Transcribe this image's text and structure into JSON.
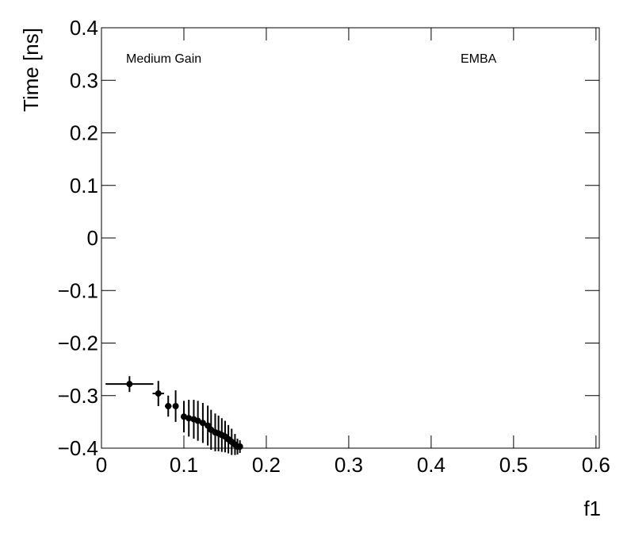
{
  "chart_data": {
    "type": "errorbar",
    "xlabel": "f1",
    "ylabel": "Time [ns]",
    "annotations": [
      "Medium Gain",
      "EMBA"
    ],
    "color": "#000000",
    "xlim": [
      0,
      0.604
    ],
    "ylim": [
      -0.4,
      0.4
    ],
    "xticks": [
      0,
      0.1,
      0.2,
      0.3,
      0.4,
      0.5,
      0.6
    ],
    "yticks": [
      {
        "value": -0.4,
        "label": "−0.4"
      },
      {
        "value": -0.3,
        "label": "−0.3"
      },
      {
        "value": -0.2,
        "label": "−0.2"
      },
      {
        "value": -0.1,
        "label": "−0.1"
      },
      0,
      0.1,
      0.2,
      0.3,
      0.4
    ],
    "x": [
      0.034,
      0.069,
      0.081,
      0.09,
      0.1,
      0.106,
      0.112,
      0.117,
      0.123,
      0.129,
      0.133,
      0.138,
      0.142,
      0.146,
      0.15,
      0.154,
      0.158,
      0.162,
      0.165,
      0.168
    ],
    "xerr": [
      0.029,
      0.007,
      0.004,
      0.003,
      0.003,
      0.003,
      0.003,
      0.003,
      0.003,
      0.002,
      0.002,
      0.002,
      0.002,
      0.002,
      0.002,
      0.002,
      0.002,
      0.002,
      0.001,
      0.001
    ],
    "y": [
      -0.278,
      -0.296,
      -0.32,
      -0.32,
      -0.34,
      -0.343,
      -0.345,
      -0.348,
      -0.352,
      -0.357,
      -0.365,
      -0.37,
      -0.372,
      -0.375,
      -0.378,
      -0.383,
      -0.388,
      -0.393,
      -0.397,
      -0.397
    ],
    "yerr": [
      0.015,
      0.024,
      0.02,
      0.03,
      0.03,
      0.035,
      0.037,
      0.038,
      0.038,
      0.038,
      0.038,
      0.036,
      0.034,
      0.032,
      0.03,
      0.027,
      0.025,
      0.02,
      0.015,
      0.012
    ]
  }
}
